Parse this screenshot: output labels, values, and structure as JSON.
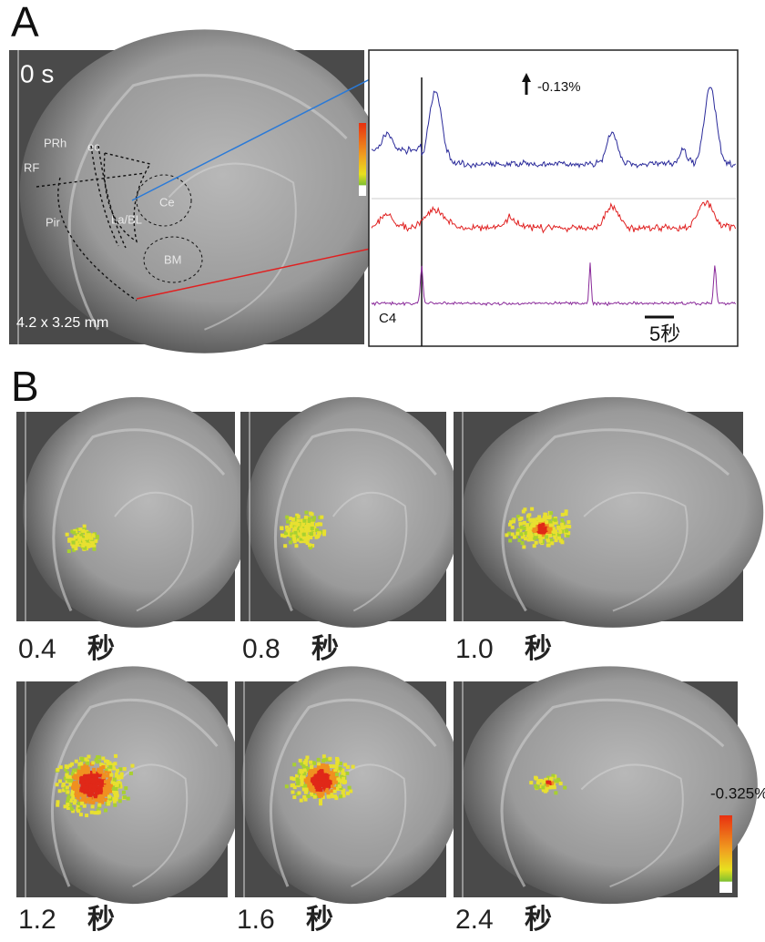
{
  "panel_a": {
    "label": "A",
    "image": {
      "time": "0 s",
      "regions": [
        "PRh",
        "ec",
        "RF",
        "Pir",
        "Ce",
        "La/BL",
        "BM"
      ],
      "scale": "4.2 x 3.25 mm"
    },
    "traces": {
      "amplitude": "-0.13%",
      "channel": "C4",
      "scale_bar": "5秒"
    }
  },
  "panel_b": {
    "label": "B",
    "frames": [
      {
        "time": "0.4",
        "unit": "秒"
      },
      {
        "time": "0.8",
        "unit": "秒"
      },
      {
        "time": "1.0",
        "unit": "秒"
      },
      {
        "time": "1.2",
        "unit": "秒"
      },
      {
        "time": "1.6",
        "unit": "秒"
      },
      {
        "time": "2.4",
        "unit": "秒"
      }
    ],
    "colorbar": "-0.325%"
  }
}
